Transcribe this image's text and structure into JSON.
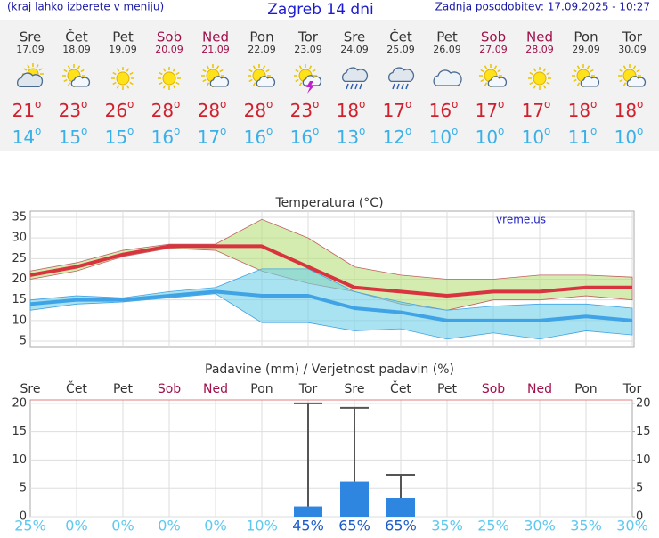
{
  "header": {
    "hint": "(kraj lahko izberete v meniju)",
    "title": "Zagreb 14 dni",
    "updated": "Zadnja posodobitev: 17.09.2025 - 10:27"
  },
  "forecast": {
    "degree_symbol": "o",
    "days": [
      {
        "name": "Sre",
        "date": "17.09",
        "max": 21,
        "min": 14,
        "color": "#333333",
        "icon": "cloud-sun"
      },
      {
        "name": "Čet",
        "date": "18.09",
        "max": 23,
        "min": 15,
        "color": "#333333",
        "icon": "sun-cloud"
      },
      {
        "name": "Pet",
        "date": "19.09",
        "max": 26,
        "min": 15,
        "color": "#333333",
        "icon": "sun"
      },
      {
        "name": "Sob",
        "date": "20.09",
        "max": 28,
        "min": 16,
        "color": "#a0104a",
        "icon": "sun"
      },
      {
        "name": "Ned",
        "date": "21.09",
        "max": 28,
        "min": 17,
        "color": "#a0104a",
        "icon": "sun-cloud"
      },
      {
        "name": "Pon",
        "date": "22.09",
        "max": 28,
        "min": 16,
        "color": "#333333",
        "icon": "sun-cloud"
      },
      {
        "name": "Tor",
        "date": "23.09",
        "max": 23,
        "min": 16,
        "color": "#333333",
        "icon": "thunder"
      },
      {
        "name": "Sre",
        "date": "24.09",
        "max": 18,
        "min": 13,
        "color": "#333333",
        "icon": "rain"
      },
      {
        "name": "Čet",
        "date": "25.09",
        "max": 17,
        "min": 12,
        "color": "#333333",
        "icon": "rain"
      },
      {
        "name": "Pet",
        "date": "26.09",
        "max": 16,
        "min": 10,
        "color": "#333333",
        "icon": "cloud"
      },
      {
        "name": "Sob",
        "date": "27.09",
        "max": 17,
        "min": 10,
        "color": "#a0104a",
        "icon": "sun-cloud"
      },
      {
        "name": "Ned",
        "date": "28.09",
        "max": 17,
        "min": 10,
        "color": "#a0104a",
        "icon": "sun"
      },
      {
        "name": "Pon",
        "date": "29.09",
        "max": 18,
        "min": 11,
        "color": "#333333",
        "icon": "sun-cloud"
      },
      {
        "name": "Tor",
        "date": "30.09",
        "max": 18,
        "min": 10,
        "color": "#333333",
        "icon": "sun-cloud"
      }
    ]
  },
  "chart_data": [
    {
      "type": "line",
      "title": "Temperatura (°C)",
      "watermark": "vreme.us",
      "categories": [
        null,
        null,
        null,
        null,
        null,
        null,
        null,
        null,
        null,
        null,
        null,
        null,
        null,
        null
      ],
      "series": [
        {
          "color": "#d8333f",
          "values": [
            21,
            23,
            26,
            28,
            28,
            28,
            23,
            18,
            17,
            16,
            17,
            17,
            18,
            18
          ]
        },
        {
          "color": "#3fa3e6",
          "values": [
            14,
            15,
            15,
            16,
            17,
            16,
            16,
            13,
            12,
            10,
            10,
            10,
            11,
            10
          ]
        }
      ],
      "bands": [
        {
          "color": "#b8e07a",
          "stroke": "#c06060",
          "lower": [
            20,
            22,
            25.5,
            27.5,
            27,
            22,
            19,
            17,
            14,
            12.5,
            15,
            15,
            16,
            15
          ],
          "upper": [
            22,
            24,
            27,
            28.5,
            28.5,
            34.5,
            30,
            23,
            21,
            20,
            20,
            21,
            21,
            20.5
          ]
        },
        {
          "color": "#6fd0e8",
          "stroke": "#3fa3e6",
          "lower": [
            12.5,
            14,
            14.5,
            15.5,
            16.5,
            9.5,
            9.5,
            7.5,
            8,
            5.5,
            7,
            5.5,
            7.5,
            6.5
          ],
          "upper": [
            15,
            16,
            15.5,
            17,
            18,
            22.5,
            22.5,
            17,
            14.5,
            12.5,
            13.5,
            14,
            14,
            13
          ]
        }
      ],
      "ylim": [
        3.5,
        36.5
      ],
      "yticks": [
        5,
        10,
        15,
        20,
        25,
        30,
        35
      ],
      "grid": true
    },
    {
      "type": "bar",
      "title": "Padavine (mm) / Verjetnost padavin (%)",
      "categories": [
        "Sre",
        "Čet",
        "Pet",
        "Sob",
        "Ned",
        "Pon",
        "Tor",
        "Sre",
        "Čet",
        "Pet",
        "Sob",
        "Ned",
        "Pon",
        "Tor"
      ],
      "category_colors": [
        "#333333",
        "#333333",
        "#333333",
        "#a0104a",
        "#a0104a",
        "#333333",
        "#333333",
        "#333333",
        "#333333",
        "#333333",
        "#a0104a",
        "#a0104a",
        "#333333",
        "#333333"
      ],
      "color": "#2f86e0",
      "values": [
        0,
        0,
        0,
        0,
        0,
        0,
        1.8,
        6.2,
        3.3,
        0,
        0,
        0,
        0,
        0
      ],
      "upper": [
        null,
        null,
        null,
        null,
        null,
        null,
        20,
        19.2,
        7.4,
        null,
        null,
        null,
        null,
        null
      ],
      "probability": {
        "values": [
          25,
          0,
          0,
          0,
          0,
          10,
          45,
          65,
          65,
          35,
          25,
          30,
          35,
          30
        ],
        "value_labels": [
          "25%",
          "0%",
          "0%",
          "0%",
          "0%",
          "10%",
          "45%",
          "65%",
          "65%",
          "35%",
          "25%",
          "30%",
          "35%",
          "30%"
        ]
      },
      "ylim": [
        0,
        20.6
      ],
      "yticks": [
        0,
        5,
        10,
        15,
        20
      ],
      "y2lim": [
        0,
        20.6
      ],
      "y2ticks": [
        0,
        5,
        10,
        15,
        20
      ],
      "grid": true
    }
  ]
}
